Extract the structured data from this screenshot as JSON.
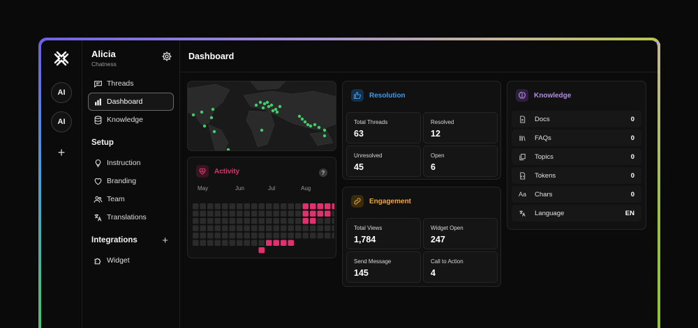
{
  "workspace": {
    "name": "Alicia",
    "subtitle": "Chatness"
  },
  "rail": {
    "avatars": [
      "AI",
      "AI"
    ],
    "add": "+"
  },
  "nav": {
    "items": [
      {
        "label": "Threads",
        "icon": "chat-icon",
        "active": false
      },
      {
        "label": "Dashboard",
        "icon": "bar-chart-icon",
        "active": true
      },
      {
        "label": "Knowledge",
        "icon": "database-icon",
        "active": false
      }
    ],
    "setup_title": "Setup",
    "setup_items": [
      {
        "label": "Instruction",
        "icon": "lightbulb-icon"
      },
      {
        "label": "Branding",
        "icon": "heart-icon"
      },
      {
        "label": "Team",
        "icon": "users-icon"
      },
      {
        "label": "Translations",
        "icon": "translate-icon"
      }
    ],
    "integrations_title": "Integrations",
    "integrations_add": "+",
    "integration_items": [
      {
        "label": "Widget",
        "icon": "puzzle-icon"
      }
    ]
  },
  "page": {
    "title": "Dashboard"
  },
  "activity": {
    "title": "Activity",
    "help": "?",
    "months": [
      "May",
      "Jun",
      "Jul",
      "Aug"
    ],
    "accent": "#e0306e",
    "active_cells": [
      [
        15,
        0
      ],
      [
        16,
        0
      ],
      [
        17,
        0
      ],
      [
        18,
        0
      ],
      [
        19,
        0
      ],
      [
        15,
        1
      ],
      [
        16,
        1
      ],
      [
        17,
        1
      ],
      [
        18,
        1
      ],
      [
        15,
        2
      ],
      [
        16,
        2
      ],
      [
        9,
        6
      ],
      [
        10,
        5
      ],
      [
        11,
        5
      ],
      [
        12,
        5
      ],
      [
        13,
        5
      ]
    ]
  },
  "resolution": {
    "title": "Resolution",
    "accent": "#3b9ae8",
    "stats": [
      {
        "label": "Total Threads",
        "value": "63"
      },
      {
        "label": "Resolved",
        "value": "12"
      },
      {
        "label": "Unresolved",
        "value": "45"
      },
      {
        "label": "Open",
        "value": "6"
      }
    ]
  },
  "engagement": {
    "title": "Engagement",
    "accent": "#e8a93a",
    "stats": [
      {
        "label": "Total Views",
        "value": "1,784"
      },
      {
        "label": "Widget Open",
        "value": "247"
      },
      {
        "label": "Send Message",
        "value": "145"
      },
      {
        "label": "Call to Action",
        "value": "4"
      }
    ]
  },
  "knowledge": {
    "title": "Knowledge",
    "accent": "#b38be8",
    "rows": [
      {
        "label": "Docs",
        "value": "0",
        "icon": "doc-icon"
      },
      {
        "label": "FAQs",
        "value": "0",
        "icon": "books-icon"
      },
      {
        "label": "Topics",
        "value": "0",
        "icon": "copy-icon"
      },
      {
        "label": "Tokens",
        "value": "0",
        "icon": "code-file-icon"
      },
      {
        "label": "Chars",
        "value": "0",
        "icon": "text-aa-icon"
      },
      {
        "label": "Language",
        "value": "EN",
        "icon": "translate-icon"
      }
    ]
  },
  "map": {
    "dot_color": "#3fcf6a"
  }
}
